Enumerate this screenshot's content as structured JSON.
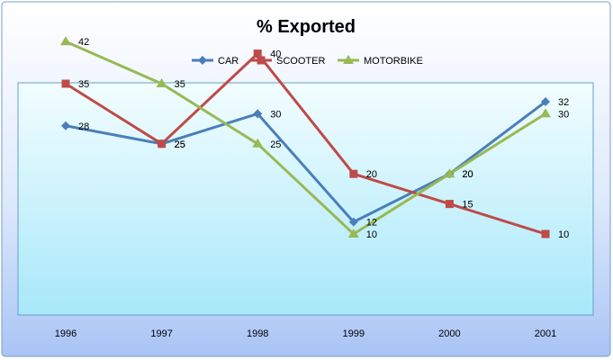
{
  "chart_data": {
    "type": "line",
    "title": "% Exported",
    "categories": [
      "1996",
      "1997",
      "1998",
      "1999",
      "2000",
      "2001"
    ],
    "series": [
      {
        "name": "CAR",
        "values": [
          28,
          25,
          30,
          12,
          20,
          32
        ],
        "color": "#4a7ebb",
        "marker": "diamond"
      },
      {
        "name": "SCOOTER",
        "values": [
          35,
          25,
          40,
          20,
          15,
          10
        ],
        "color": "#be4b48",
        "marker": "square"
      },
      {
        "name": "MOTORBIKE",
        "values": [
          42,
          35,
          25,
          10,
          20,
          30
        ],
        "color": "#98b954",
        "marker": "triangle"
      }
    ],
    "legend_position": "top",
    "grid": false
  }
}
